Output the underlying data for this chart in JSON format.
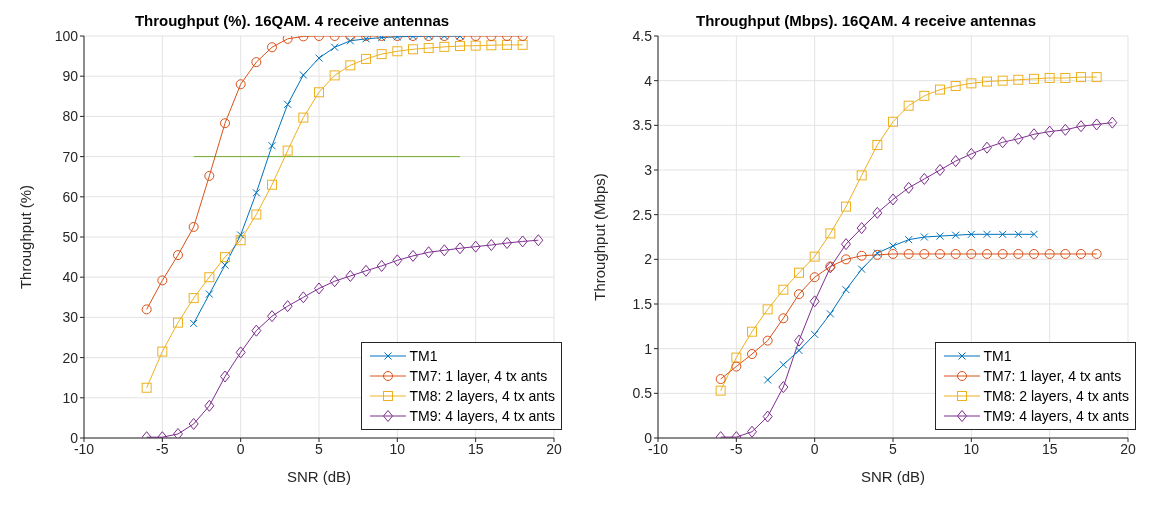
{
  "chart_data": [
    {
      "type": "line",
      "title": "Throughput (%). 16QAM. 4 receive antennas",
      "xlabel": "SNR (dB)",
      "ylabel": "Throughput (%)",
      "xlim": [
        -10,
        20
      ],
      "xticks": [
        -10,
        -5,
        0,
        5,
        10,
        15,
        20
      ],
      "ylim": [
        0,
        100
      ],
      "yticks": [
        0,
        10,
        20,
        30,
        40,
        50,
        60,
        70,
        80,
        90,
        100
      ],
      "grid": true,
      "legend": "bottom right",
      "series": [
        {
          "name": "TM1",
          "color": "#0072bd",
          "marker": "cross",
          "x": [
            -3,
            -2,
            -1,
            0,
            1,
            2,
            3,
            4,
            5,
            6,
            7,
            8,
            9,
            10,
            11,
            12,
            13,
            14
          ],
          "values": [
            28.5,
            35.8,
            43,
            50.5,
            61,
            72.7,
            83,
            90.3,
            94.5,
            97.2,
            98.8,
            99.3,
            99.6,
            99.8,
            99.9,
            100,
            100,
            100
          ]
        },
        {
          "name": "TM7: 1 layer, 4 tx ants",
          "color": "#d95319",
          "marker": "circle",
          "x": [
            -6,
            -5,
            -4,
            -3,
            -2,
            -1,
            0,
            1,
            2,
            3,
            4,
            5,
            6,
            7,
            8,
            9,
            10,
            11,
            12,
            13,
            14,
            15,
            16,
            17,
            18
          ],
          "values": [
            32,
            39.2,
            45.5,
            52.5,
            65.2,
            78.3,
            88,
            93.5,
            97.2,
            99.3,
            99.9,
            100,
            100,
            100,
            100,
            100,
            100,
            100,
            100,
            100,
            100,
            100,
            100,
            100,
            100
          ]
        },
        {
          "name": "TM8: 2 layers, 4 tx ants",
          "color": "#edb120",
          "marker": "square",
          "x": [
            -6,
            -5,
            -4,
            -3,
            -2,
            -1,
            0,
            1,
            2,
            3,
            4,
            5,
            6,
            7,
            8,
            9,
            10,
            11,
            12,
            13,
            14,
            15,
            16,
            17,
            18
          ],
          "values": [
            12.5,
            21.5,
            28.7,
            34.8,
            40,
            45,
            49.2,
            55.6,
            63,
            71.5,
            79.7,
            86,
            90.2,
            92.7,
            94.3,
            95.5,
            96.2,
            96.7,
            97,
            97.3,
            97.5,
            97.6,
            97.7,
            97.8,
            97.8
          ]
        },
        {
          "name": "TM9: 4 layers, 4 tx ants",
          "color": "#7e2f8e",
          "marker": "diamond",
          "x": [
            -6,
            -5,
            -4,
            -3,
            -2,
            -1,
            0,
            1,
            2,
            3,
            4,
            5,
            6,
            7,
            8,
            9,
            10,
            11,
            12,
            13,
            14,
            15,
            16,
            17,
            18,
            19
          ],
          "values": [
            0.2,
            0.2,
            1,
            3.5,
            8,
            15.3,
            21.3,
            26.7,
            30.3,
            32.8,
            35,
            37.2,
            39,
            40.3,
            41.6,
            42.8,
            44.2,
            45.3,
            46.2,
            46.7,
            47.2,
            47.6,
            48,
            48.5,
            48.9,
            49.2
          ]
        },
        {
          "color": "#77ac30",
          "marker": "none",
          "x": [
            -3,
            14
          ],
          "values": [
            70,
            70
          ]
        }
      ]
    },
    {
      "type": "line",
      "title": "Throughput (Mbps). 16QAM. 4 receive antennas",
      "xlabel": "SNR (dB)",
      "ylabel": "Throughput (Mbps)",
      "xlim": [
        -10,
        20
      ],
      "xticks": [
        -10,
        -5,
        0,
        5,
        10,
        15,
        20
      ],
      "ylim": [
        0,
        4.5
      ],
      "yticks": [
        0,
        0.5,
        1,
        1.5,
        2,
        2.5,
        3,
        3.5,
        4,
        4.5
      ],
      "grid": true,
      "legend": "bottom right",
      "series": [
        {
          "name": "TM1",
          "color": "#0072bd",
          "marker": "cross",
          "x": [
            -3,
            -2,
            -1,
            0,
            1,
            2,
            3,
            4,
            5,
            6,
            7,
            8,
            9,
            10,
            11,
            12,
            13,
            14
          ],
          "values": [
            0.65,
            0.82,
            0.98,
            1.16,
            1.39,
            1.66,
            1.89,
            2.07,
            2.15,
            2.22,
            2.25,
            2.26,
            2.27,
            2.28,
            2.28,
            2.28,
            2.28,
            2.28
          ]
        },
        {
          "name": "TM7: 1 layer, 4 tx ants",
          "color": "#d95319",
          "marker": "circle",
          "x": [
            -6,
            -5,
            -4,
            -3,
            -2,
            -1,
            0,
            1,
            2,
            3,
            4,
            5,
            6,
            7,
            8,
            9,
            10,
            11,
            12,
            13,
            14,
            15,
            16,
            17,
            18
          ],
          "values": [
            0.66,
            0.8,
            0.94,
            1.09,
            1.34,
            1.61,
            1.8,
            1.92,
            2,
            2.04,
            2.05,
            2.06,
            2.06,
            2.06,
            2.06,
            2.06,
            2.06,
            2.06,
            2.06,
            2.06,
            2.06,
            2.06,
            2.06,
            2.06,
            2.06
          ]
        },
        {
          "name": "TM8: 2 layers, 4 tx ants",
          "color": "#edb120",
          "marker": "square",
          "x": [
            -6,
            -5,
            -4,
            -3,
            -2,
            -1,
            0,
            1,
            2,
            3,
            4,
            5,
            6,
            7,
            8,
            9,
            10,
            11,
            12,
            13,
            14,
            15,
            16,
            17,
            18
          ],
          "values": [
            0.53,
            0.9,
            1.19,
            1.44,
            1.66,
            1.85,
            2.03,
            2.29,
            2.59,
            2.94,
            3.28,
            3.54,
            3.72,
            3.83,
            3.9,
            3.94,
            3.97,
            3.99,
            4,
            4.01,
            4.02,
            4.03,
            4.03,
            4.04,
            4.04
          ]
        },
        {
          "name": "TM9: 4 layers, 4 tx ants",
          "color": "#7e2f8e",
          "marker": "diamond",
          "x": [
            -6,
            -5,
            -4,
            -3,
            -2,
            -1,
            0,
            1,
            2,
            3,
            4,
            5,
            6,
            7,
            8,
            9,
            10,
            11,
            12,
            13,
            14,
            15,
            16,
            17,
            18,
            19
          ],
          "values": [
            0.01,
            0.01,
            0.07,
            0.24,
            0.57,
            1.09,
            1.53,
            1.91,
            2.17,
            2.35,
            2.52,
            2.67,
            2.8,
            2.9,
            3,
            3.1,
            3.18,
            3.25,
            3.31,
            3.35,
            3.4,
            3.43,
            3.45,
            3.49,
            3.51,
            3.53
          ]
        }
      ]
    }
  ]
}
